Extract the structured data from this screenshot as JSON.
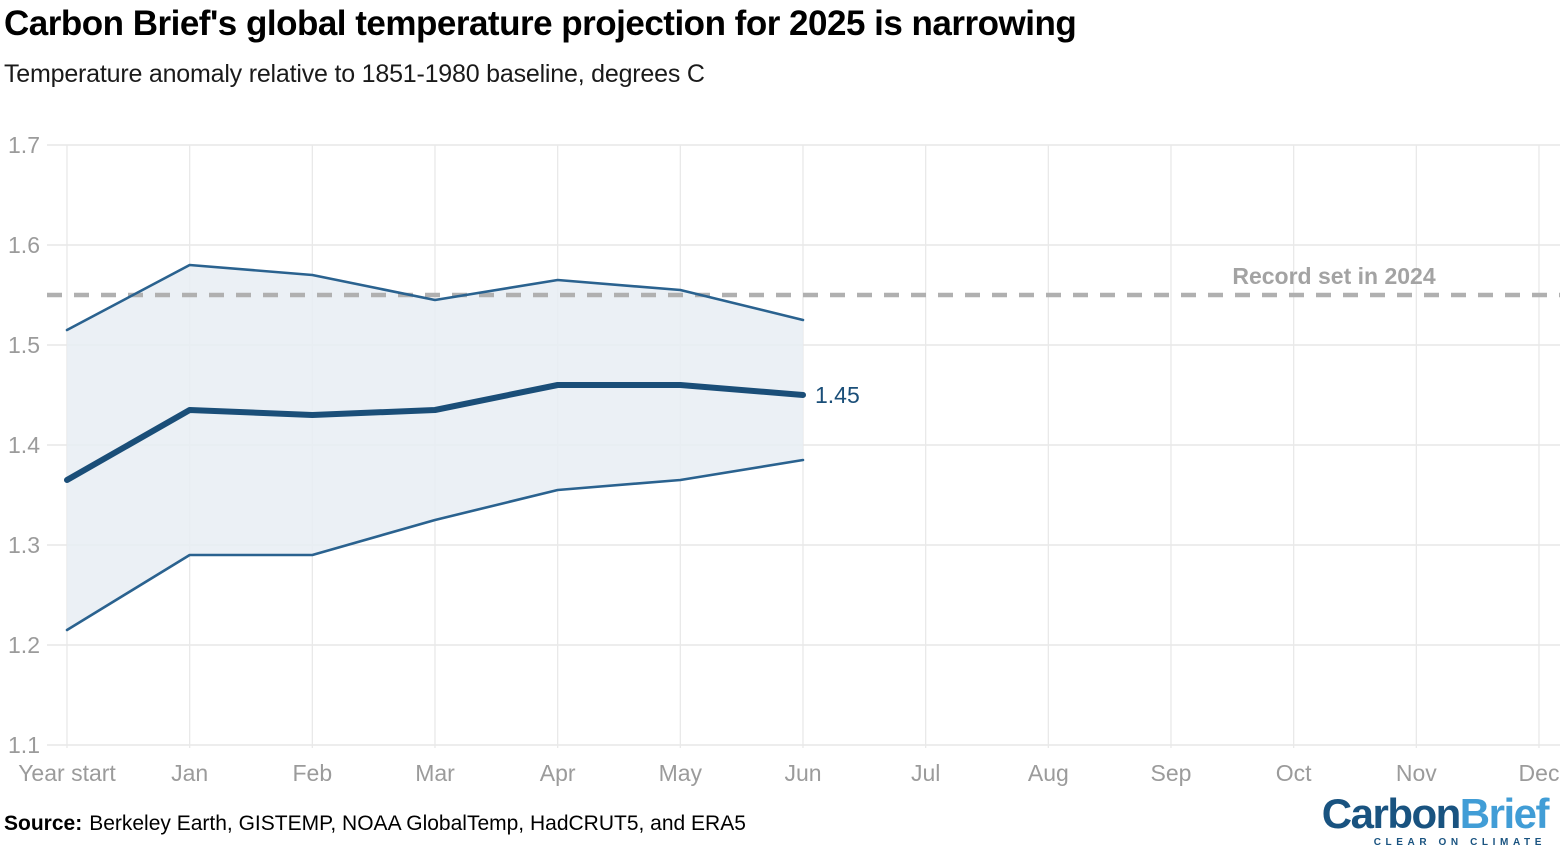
{
  "header": {
    "title": "Carbon Brief's global temperature projection for 2025 is narrowing",
    "subtitle": "Temperature anomaly relative to 1851-1980 baseline, degrees C"
  },
  "chart_data": {
    "type": "line",
    "title": "Carbon Brief's global temperature projection for 2025 is narrowing",
    "subtitle": "Temperature anomaly relative to 1851-1980 baseline, degrees C",
    "categories": [
      "Year start",
      "Jan",
      "Feb",
      "Mar",
      "Apr",
      "May",
      "Jun",
      "Jul",
      "Aug",
      "Sep",
      "Oct",
      "Nov",
      "Dec"
    ],
    "series": [
      {
        "name": "central estimate",
        "values": [
          1.365,
          1.435,
          1.43,
          1.435,
          1.46,
          1.46,
          1.45
        ]
      },
      {
        "name": "upper bound",
        "values": [
          1.515,
          1.58,
          1.57,
          1.545,
          1.565,
          1.555,
          1.525
        ]
      },
      {
        "name": "lower bound",
        "values": [
          1.215,
          1.29,
          1.29,
          1.325,
          1.355,
          1.365,
          1.385
        ]
      }
    ],
    "end_label": "1.45",
    "record_line": {
      "value": 1.55,
      "label": "Record set in 2024"
    },
    "ylim": [
      1.1,
      1.7
    ],
    "yticks": [
      "1.7",
      "1.6",
      "1.5",
      "1.4",
      "1.3",
      "1.2",
      "1.1"
    ],
    "grid": true,
    "legend": "none",
    "colors": {
      "central_line": "#1a4e78",
      "bound_line": "#2a628f",
      "band_fill": "#e8edf3",
      "record_line": "#b0b0b0",
      "record_label": "#a3a3a3",
      "axis_label": "#9b9b9b",
      "grid_line_h": "#e2e2e2",
      "grid_line_v": "#e9e9e9",
      "end_label": "#1a4e78"
    }
  },
  "footer": {
    "source_label": "Source:",
    "source_text": "Berkeley Earth, GISTEMP, NOAA GlobalTemp, HadCRUT5, and ERA5"
  },
  "logo": {
    "part1": "Carbon",
    "part2": "Brief",
    "tagline": "CLEAR ON CLIMATE"
  }
}
